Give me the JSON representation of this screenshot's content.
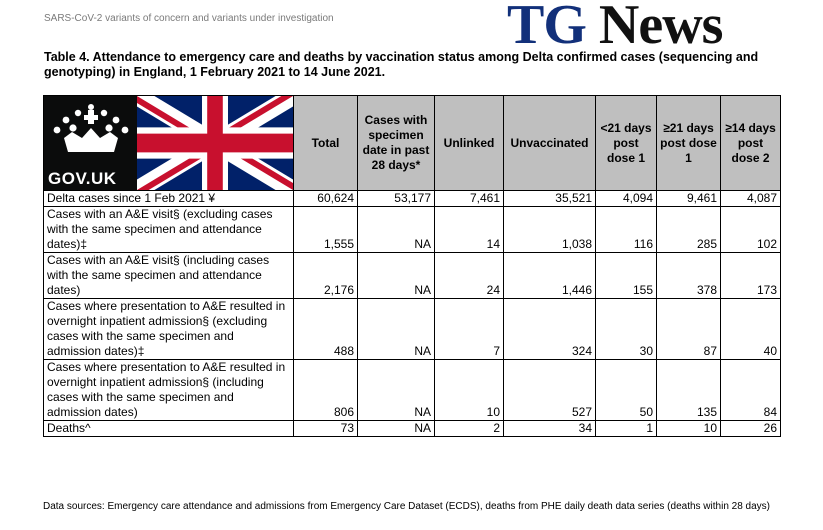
{
  "header_note": "SARS-CoV-2 variants of concern and variants under investigation",
  "watermark": {
    "tg": "TG",
    "news": "News"
  },
  "table_title": "Table 4. Attendance to emergency care and deaths by vaccination status among Delta confirmed cases (sequencing and genotyping) in England, 1 February 2021 to 14 June 2021.",
  "gov_logo_text": "GOV.UK",
  "columns": [
    "Total",
    "Cases with specimen date in past 28 days*",
    "Unlinked",
    "Unvaccinated",
    "<21 days post dose 1",
    "≥21 days post dose 1",
    "≥14 days post dose 2"
  ],
  "rows": [
    {
      "label": "Delta cases since 1 Feb 2021 ¥",
      "values": [
        "60,624",
        "53,177",
        "7,461",
        "35,521",
        "4,094",
        "9,461",
        "4,087"
      ]
    },
    {
      "label": "Cases with an A&E visit§ (excluding cases with the same specimen and attendance dates)‡",
      "values": [
        "1,555",
        "NA",
        "14",
        "1,038",
        "116",
        "285",
        "102"
      ]
    },
    {
      "label": "Cases with an A&E visit§ (including cases with the same specimen and attendance dates)",
      "values": [
        "2,176",
        "NA",
        "24",
        "1,446",
        "155",
        "378",
        "173"
      ]
    },
    {
      "label": "Cases where presentation to A&E resulted in overnight inpatient admission§ (excluding cases with the same specimen and admission dates)‡",
      "values": [
        "488",
        "NA",
        "7",
        "324",
        "30",
        "87",
        "40"
      ]
    },
    {
      "label": "Cases where presentation to A&E resulted in overnight inpatient admission§ (including cases with the same specimen and admission dates)",
      "values": [
        "806",
        "NA",
        "10",
        "527",
        "50",
        "135",
        "84"
      ]
    },
    {
      "label": "Deaths^",
      "values": [
        "73",
        "NA",
        "2",
        "34",
        "1",
        "10",
        "26"
      ]
    }
  ],
  "footer_note": "Data sources: Emergency care attendance and admissions from Emergency Care Dataset (ECDS), deaths from PHE daily death data series (deaths within 28 days)",
  "colors": {
    "header_bg": "#bfbfbf",
    "tg_blue": "#12307a",
    "gov_black": "#0b0c0c"
  }
}
